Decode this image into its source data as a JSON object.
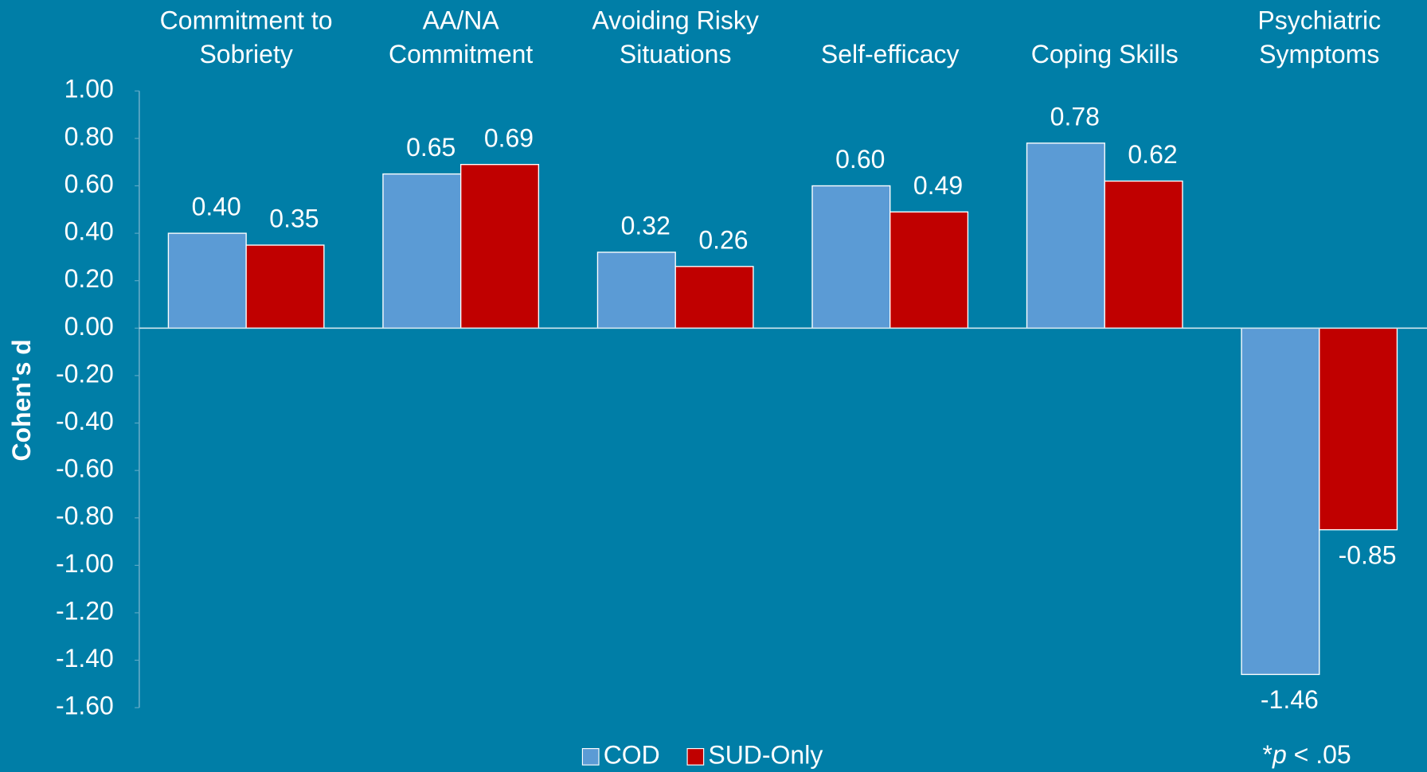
{
  "chart_data": {
    "type": "bar",
    "categories": [
      "Commitment to Sobriety",
      "AA/NA Commitment",
      "Avoiding Risky Situations",
      "Self-efficacy",
      "Coping Skills",
      "Psychiatric Symptoms"
    ],
    "series": [
      {
        "name": "COD",
        "color": "#5b9bd5",
        "values": [
          0.4,
          0.65,
          0.32,
          0.6,
          0.78,
          -1.46
        ],
        "value_labels": [
          "0.40",
          "0.65",
          "0.32",
          "0.60",
          "0.78",
          "-1.46"
        ]
      },
      {
        "name": "SUD-Only",
        "color": "#c00000",
        "values": [
          0.35,
          0.69,
          0.26,
          0.49,
          0.62,
          -0.85
        ],
        "value_labels": [
          "0.35",
          "0.69",
          "0.26",
          "0.49",
          "0.62",
          "-0.85"
        ]
      }
    ],
    "y_label": "Cohen's d",
    "ylim": [
      -1.6,
      1.0
    ],
    "yticks": [
      {
        "value": 1,
        "label": "1.00"
      },
      {
        "value": 0.8,
        "label": "0.80"
      },
      {
        "value": 0.6,
        "label": "0.60"
      },
      {
        "value": 0.4,
        "label": "0.40"
      },
      {
        "value": 0.2,
        "label": "0.20"
      },
      {
        "value": 0,
        "label": "0.00"
      },
      {
        "value": -0.2,
        "label": "-0.20"
      },
      {
        "value": -0.4,
        "label": "-0.40"
      },
      {
        "value": -0.6,
        "label": "-0.60"
      },
      {
        "value": -0.8,
        "label": "-0.80"
      },
      {
        "value": -1,
        "label": "-1.00"
      },
      {
        "value": -1.2,
        "label": "-1.20"
      },
      {
        "value": -1.4,
        "label": "-1.40"
      },
      {
        "value": -1.6,
        "label": "-1.60"
      }
    ],
    "legend": "bottom",
    "note": {
      "prefix": "*",
      "italic": "p",
      "suffix": " < .05"
    }
  }
}
